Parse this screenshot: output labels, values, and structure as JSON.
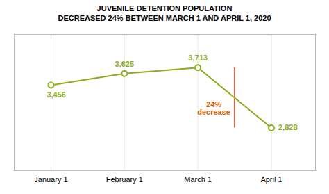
{
  "chart_data": {
    "type": "line",
    "title": "JUVENILE DETENTION POPULATION",
    "subtitle": "DECREASED 24% BETWEEN MARCH 1 AND APRIL 1, 2020",
    "categories": [
      "January 1",
      "February 1",
      "March 1",
      "April 1"
    ],
    "values": [
      3456,
      3625,
      3713,
      2828
    ],
    "value_labels": [
      "3,456",
      "3,625",
      "3,713",
      "2,828"
    ],
    "data_labels": true,
    "color": "#8aad1e",
    "marker": "circle",
    "ylim": [
      2200,
      4200
    ],
    "tick_labels": "x",
    "grid": true,
    "annotations": [
      {
        "text": "24%\ndecrease",
        "color": "#d45f00",
        "line_color": "#cc2200"
      }
    ]
  }
}
